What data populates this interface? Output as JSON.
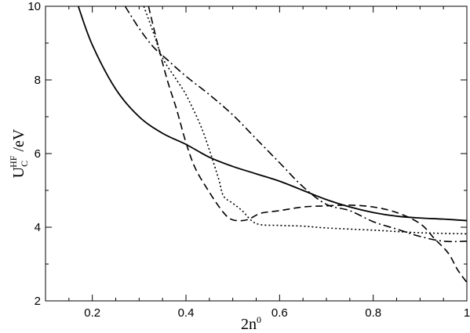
{
  "chart_data": {
    "type": "line",
    "title": "",
    "xlabel": {
      "base": "2n",
      "sup": "0"
    },
    "ylabel": {
      "base": "U",
      "sub": "C",
      "sup": "HF",
      "unit": " /eV"
    },
    "xlim": [
      0.1,
      1.0
    ],
    "ylim": [
      2,
      10
    ],
    "xticks": [
      0.2,
      0.4,
      0.6,
      0.8,
      1.0
    ],
    "xtick_labels": [
      "0.2",
      "0.4",
      "0.6",
      "0.8",
      "1"
    ],
    "yticks": [
      2,
      4,
      6,
      8,
      10
    ],
    "ytick_labels": [
      "2",
      "4",
      "6",
      "8",
      "10"
    ],
    "grid": false,
    "legend": "none",
    "series": [
      {
        "style": "solid",
        "color": "#000000",
        "points": [
          [
            0.17,
            10.0
          ],
          [
            0.2,
            8.95
          ],
          [
            0.25,
            7.75
          ],
          [
            0.3,
            7.0
          ],
          [
            0.35,
            6.55
          ],
          [
            0.4,
            6.25
          ],
          [
            0.45,
            5.9
          ],
          [
            0.5,
            5.65
          ],
          [
            0.55,
            5.45
          ],
          [
            0.6,
            5.25
          ],
          [
            0.65,
            5.0
          ],
          [
            0.7,
            4.75
          ],
          [
            0.75,
            4.55
          ],
          [
            0.8,
            4.4
          ],
          [
            0.85,
            4.3
          ],
          [
            0.9,
            4.25
          ],
          [
            0.95,
            4.22
          ],
          [
            1.0,
            4.18
          ]
        ]
      },
      {
        "style": "dashed",
        "color": "#000000",
        "points": [
          [
            0.32,
            10.0
          ],
          [
            0.34,
            8.95
          ],
          [
            0.36,
            8.0
          ],
          [
            0.38,
            7.2
          ],
          [
            0.4,
            6.3
          ],
          [
            0.42,
            5.6
          ],
          [
            0.45,
            4.95
          ],
          [
            0.48,
            4.4
          ],
          [
            0.5,
            4.2
          ],
          [
            0.53,
            4.2
          ],
          [
            0.56,
            4.38
          ],
          [
            0.6,
            4.45
          ],
          [
            0.65,
            4.55
          ],
          [
            0.7,
            4.58
          ],
          [
            0.75,
            4.6
          ],
          [
            0.8,
            4.55
          ],
          [
            0.85,
            4.4
          ],
          [
            0.9,
            4.1
          ],
          [
            0.93,
            3.7
          ],
          [
            0.96,
            3.3
          ],
          [
            0.98,
            2.85
          ],
          [
            1.0,
            2.5
          ]
        ]
      },
      {
        "style": "dotted",
        "color": "#000000",
        "points": [
          [
            0.31,
            10.0
          ],
          [
            0.33,
            9.3
          ],
          [
            0.35,
            8.6
          ],
          [
            0.38,
            8.0
          ],
          [
            0.4,
            7.6
          ],
          [
            0.43,
            6.8
          ],
          [
            0.45,
            6.1
          ],
          [
            0.47,
            5.3
          ],
          [
            0.48,
            4.85
          ],
          [
            0.5,
            4.65
          ],
          [
            0.52,
            4.45
          ],
          [
            0.55,
            4.1
          ],
          [
            0.6,
            4.05
          ],
          [
            0.65,
            4.03
          ],
          [
            0.7,
            3.98
          ],
          [
            0.8,
            3.92
          ],
          [
            0.9,
            3.85
          ],
          [
            1.0,
            3.82
          ]
        ]
      },
      {
        "style": "dashdot",
        "color": "#000000",
        "points": [
          [
            0.27,
            10.0
          ],
          [
            0.3,
            9.4
          ],
          [
            0.33,
            8.9
          ],
          [
            0.36,
            8.55
          ],
          [
            0.4,
            8.1
          ],
          [
            0.45,
            7.6
          ],
          [
            0.5,
            7.05
          ],
          [
            0.55,
            6.4
          ],
          [
            0.6,
            5.75
          ],
          [
            0.65,
            5.1
          ],
          [
            0.7,
            4.62
          ],
          [
            0.75,
            4.45
          ],
          [
            0.8,
            4.15
          ],
          [
            0.85,
            3.95
          ],
          [
            0.9,
            3.75
          ],
          [
            0.95,
            3.62
          ],
          [
            1.0,
            3.62
          ]
        ]
      }
    ]
  }
}
